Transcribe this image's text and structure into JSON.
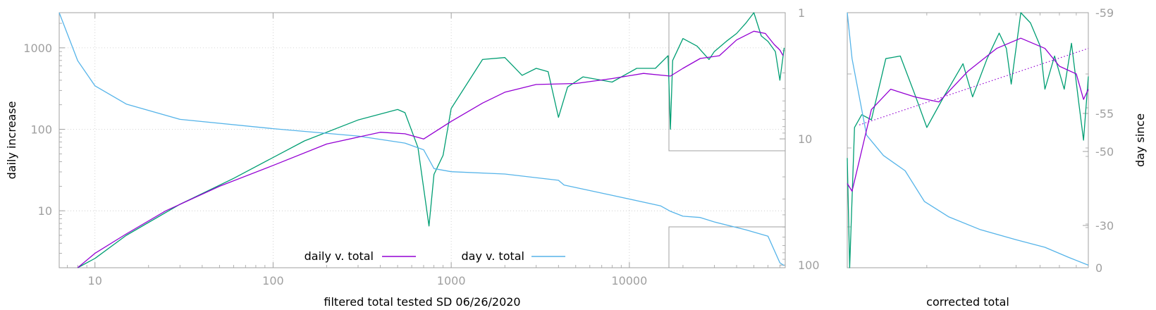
{
  "colors": {
    "daily_line": "#9400d3",
    "day_line": "#56b4e9",
    "raw_line": "#009e73",
    "axis": "#a0a0a0",
    "grid": "#c8c8c8"
  },
  "chart_data": [
    {
      "type": "line",
      "xlabel": "filtered total tested SD 06/26/2020",
      "ylabel": "daily increase",
      "x_scale": "log",
      "y_scale": "log",
      "xlim": [
        6.3,
        75000
      ],
      "ylim": [
        2,
        2700
      ],
      "y2lim": [
        1,
        105
      ],
      "y2_reversed": true,
      "grid": true,
      "legend_placement": "bottom-center",
      "x_ticks": [
        "10",
        "100",
        "1000",
        "10000"
      ],
      "y_ticks": [
        "10",
        "100",
        "1000"
      ],
      "y2_ticks": [
        "1",
        "10",
        "100"
      ],
      "series": [
        {
          "name": "daily v. total",
          "color": "#9400d3",
          "axis": "y",
          "points": [
            [
              8,
              2
            ],
            [
              10,
              3
            ],
            [
              15,
              5.2
            ],
            [
              25,
              10
            ],
            [
              50,
              20
            ],
            [
              100,
              36
            ],
            [
              200,
              66
            ],
            [
              400,
              92
            ],
            [
              550,
              88
            ],
            [
              700,
              76
            ],
            [
              1000,
              125
            ],
            [
              1500,
              210
            ],
            [
              2000,
              285
            ],
            [
              3000,
              355
            ],
            [
              5000,
              365
            ],
            [
              8000,
              420
            ],
            [
              12000,
              485
            ],
            [
              17000,
              450
            ],
            [
              20000,
              560
            ],
            [
              25000,
              740
            ],
            [
              32000,
              800
            ],
            [
              40000,
              1250
            ],
            [
              50000,
              1600
            ],
            [
              58000,
              1500
            ],
            [
              65000,
              1100
            ],
            [
              70000,
              940
            ],
            [
              73000,
              800
            ]
          ]
        },
        {
          "name": "day v. total",
          "color": "#56b4e9",
          "axis": "y2",
          "points": [
            [
              6.3,
              1
            ],
            [
              8,
              2.4
            ],
            [
              10,
              3.8
            ],
            [
              15,
              5.3
            ],
            [
              30,
              7
            ],
            [
              100,
              8.3
            ],
            [
              300,
              9.5
            ],
            [
              550,
              10.8
            ],
            [
              700,
              12.2
            ],
            [
              800,
              17.2
            ],
            [
              1000,
              18.2
            ],
            [
              2000,
              19
            ],
            [
              4000,
              21.3
            ],
            [
              4300,
              23.2
            ],
            [
              8000,
              28
            ],
            [
              15000,
              34
            ],
            [
              17000,
              37.5
            ],
            [
              20000,
              41
            ],
            [
              25000,
              42
            ],
            [
              30000,
              45.5
            ],
            [
              45000,
              52.5
            ],
            [
              60000,
              59
            ],
            [
              70000,
              96
            ],
            [
              74000,
              101
            ]
          ]
        },
        {
          "name": "",
          "color": "#009e73",
          "axis": "y",
          "points": [
            [
              8,
              2
            ],
            [
              10,
              2.6
            ],
            [
              15,
              5
            ],
            [
              30,
              12
            ],
            [
              60,
              25
            ],
            [
              150,
              72
            ],
            [
              300,
              130
            ],
            [
              500,
              175
            ],
            [
              550,
              160
            ],
            [
              650,
              60
            ],
            [
              750,
              6.5
            ],
            [
              800,
              28
            ],
            [
              900,
              48
            ],
            [
              1000,
              180
            ],
            [
              1500,
              720
            ],
            [
              2000,
              760
            ],
            [
              2500,
              460
            ],
            [
              3000,
              560
            ],
            [
              3500,
              510
            ],
            [
              4000,
              140
            ],
            [
              4500,
              330
            ],
            [
              5500,
              440
            ],
            [
              8000,
              380
            ],
            [
              11000,
              560
            ],
            [
              14000,
              560
            ],
            [
              16500,
              800
            ],
            [
              17000,
              100
            ],
            [
              17500,
              700
            ],
            [
              20000,
              1300
            ],
            [
              24000,
              1050
            ],
            [
              28000,
              720
            ],
            [
              30000,
              900
            ],
            [
              35000,
              1200
            ],
            [
              40000,
              1500
            ],
            [
              45000,
              2000
            ],
            [
              50000,
              2700
            ],
            [
              55000,
              1400
            ],
            [
              60000,
              1200
            ],
            [
              66000,
              900
            ],
            [
              70000,
              400
            ],
            [
              74000,
              1000
            ]
          ]
        }
      ]
    },
    {
      "type": "line",
      "xlabel": "corrected total",
      "ylabel": "day since",
      "x_range": [
        0,
        1
      ],
      "ylim": [
        0,
        1
      ],
      "y2_ticks": [
        "-59",
        "-55",
        "-50",
        "-30",
        "0"
      ],
      "series": [
        {
          "name": "",
          "color": "#9400d3",
          "axis": "y",
          "points": [
            [
              0,
              0.33
            ],
            [
              0.02,
              0.3
            ],
            [
              0.1,
              0.62
            ],
            [
              0.18,
              0.7
            ],
            [
              0.28,
              0.67
            ],
            [
              0.38,
              0.65
            ],
            [
              0.5,
              0.77
            ],
            [
              0.62,
              0.86
            ],
            [
              0.72,
              0.9
            ],
            [
              0.82,
              0.86
            ],
            [
              0.88,
              0.79
            ],
            [
              0.95,
              0.76
            ],
            [
              0.98,
              0.66
            ],
            [
              1,
              0.7
            ]
          ]
        },
        {
          "name": "",
          "color": "#9400d3",
          "axis": "y",
          "style": "dotted",
          "points": [
            [
              0.05,
              0.56
            ],
            [
              1,
              0.86
            ]
          ]
        },
        {
          "name": "",
          "color": "#56b4e9",
          "axis": "y2",
          "points": [
            [
              0,
              1
            ],
            [
              0.02,
              0.82
            ],
            [
              0.08,
              0.52
            ],
            [
              0.15,
              0.44
            ],
            [
              0.24,
              0.38
            ],
            [
              0.32,
              0.26
            ],
            [
              0.42,
              0.2
            ],
            [
              0.55,
              0.15
            ],
            [
              0.7,
              0.11
            ],
            [
              0.82,
              0.08
            ],
            [
              0.92,
              0.04
            ],
            [
              1,
              0.01
            ]
          ]
        },
        {
          "name": "",
          "color": "#009e73",
          "axis": "y",
          "points": [
            [
              0,
              0.43
            ],
            [
              0.01,
              0
            ],
            [
              0.03,
              0.55
            ],
            [
              0.06,
              0.6
            ],
            [
              0.1,
              0.58
            ],
            [
              0.16,
              0.82
            ],
            [
              0.22,
              0.83
            ],
            [
              0.28,
              0.68
            ],
            [
              0.33,
              0.55
            ],
            [
              0.4,
              0.67
            ],
            [
              0.48,
              0.8
            ],
            [
              0.52,
              0.67
            ],
            [
              0.58,
              0.82
            ],
            [
              0.63,
              0.92
            ],
            [
              0.66,
              0.86
            ],
            [
              0.68,
              0.72
            ],
            [
              0.72,
              1
            ],
            [
              0.76,
              0.96
            ],
            [
              0.8,
              0.87
            ],
            [
              0.82,
              0.7
            ],
            [
              0.86,
              0.83
            ],
            [
              0.9,
              0.7
            ],
            [
              0.93,
              0.88
            ],
            [
              0.96,
              0.65
            ],
            [
              0.98,
              0.5
            ],
            [
              1,
              0.75
            ]
          ]
        }
      ]
    }
  ]
}
